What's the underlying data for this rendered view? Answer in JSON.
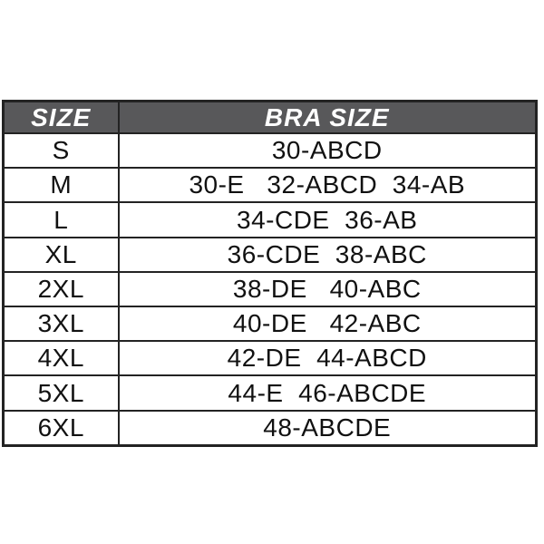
{
  "chart_data": {
    "type": "table",
    "title": "",
    "columns": [
      "SIZE",
      "BRA SIZE"
    ],
    "rows": [
      [
        "S",
        "30-ABCD"
      ],
      [
        "M",
        "30-E   32-ABCD  34-AB"
      ],
      [
        "L",
        "34-CDE  36-AB"
      ],
      [
        "XL",
        "36-CDE  38-ABC"
      ],
      [
        "2XL",
        "38-DE   40-ABC"
      ],
      [
        "3XL",
        "40-DE   42-ABC"
      ],
      [
        "4XL",
        "42-DE  44-ABCD"
      ],
      [
        "5XL",
        "44-E  46-ABCDE"
      ],
      [
        "6XL",
        "48-ABCDE"
      ]
    ],
    "layout": {
      "legend": "none",
      "grid": "all-borders",
      "header_style": "bold-italic-white-on-dark-gray"
    }
  },
  "colors": {
    "page_bg": "#ffffff",
    "header_bg": "#58585a",
    "header_text": "#ffffff",
    "border": "#232323",
    "row_bg": "#ffffff",
    "cell_text": "#111111"
  }
}
